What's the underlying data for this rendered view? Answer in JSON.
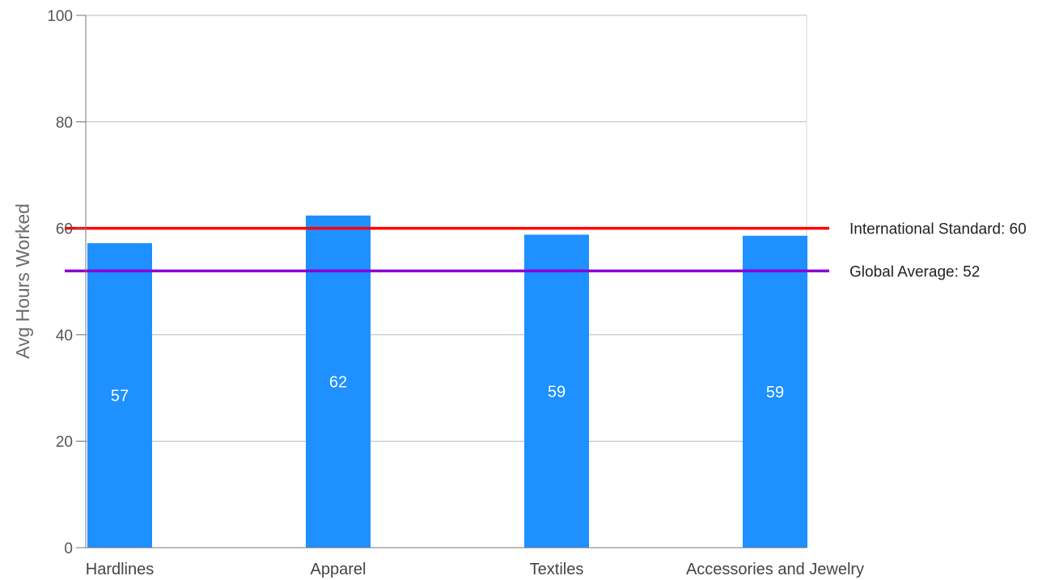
{
  "chart_data": {
    "type": "bar",
    "ylabel": "Avg Hours Worked",
    "xlabel": "",
    "ylim": [
      0,
      100
    ],
    "yticks": [
      0,
      20,
      40,
      60,
      80,
      100
    ],
    "grid": true,
    "categories": [
      "Hardlines",
      "Apparel",
      "Textiles",
      "Accessories and Jewelry"
    ],
    "values": [
      57.2,
      62.4,
      58.8,
      58.6
    ],
    "value_labels": [
      "57",
      "62",
      "59",
      "59"
    ],
    "bar_color": "#1e90ff",
    "reference_lines": [
      {
        "label": "International Standard: 60",
        "value": 60,
        "color": "#ff0000"
      },
      {
        "label": "Global Average: 52",
        "value": 52,
        "color": "#8a00d4"
      }
    ]
  }
}
